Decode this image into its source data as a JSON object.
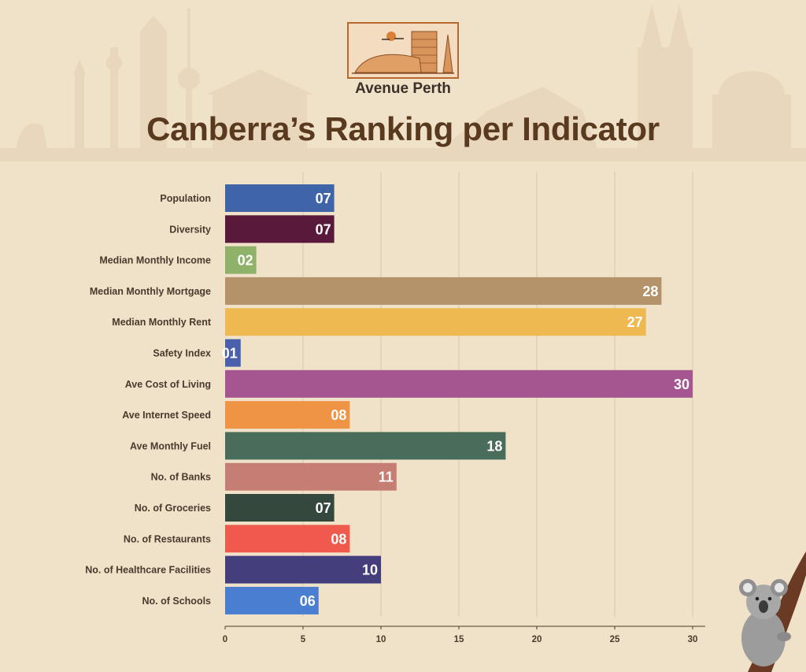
{
  "brand": {
    "name": "Avenue Perth"
  },
  "chart_data": {
    "type": "bar",
    "orientation": "horizontal",
    "title": "Canberra’s Ranking per Indicator",
    "xlabel": "",
    "ylabel": "",
    "xlim": [
      0,
      31
    ],
    "xticks": [
      0,
      5,
      10,
      15,
      20,
      25,
      30
    ],
    "grid": true,
    "categories": [
      "Population",
      "Diversity",
      "Median Monthly Income",
      "Median Monthly Mortgage",
      "Median Monthly Rent",
      "Safety Index",
      "Ave Cost of Living",
      "Ave Internet Speed",
      "Ave Monthly Fuel",
      "No. of Banks",
      "No. of Groceries",
      "No. of Restaurants",
      "No. of Healthcare Facilities",
      "No. of Schools"
    ],
    "values": [
      7,
      7,
      2,
      28,
      27,
      1,
      30,
      8,
      18,
      11,
      7,
      8,
      10,
      6
    ],
    "value_labels": [
      "07",
      "07",
      "02",
      "28",
      "27",
      "01",
      "30",
      "08",
      "18",
      "11",
      "07",
      "08",
      "10",
      "06"
    ],
    "colors": [
      "#3f65a8",
      "#58193b",
      "#8eb26a",
      "#b4936a",
      "#efb951",
      "#4a60ad",
      "#a55590",
      "#ef9444",
      "#496c5b",
      "#c57d74",
      "#34483d",
      "#ef5a4c",
      "#453e7c",
      "#4a7ed0"
    ]
  }
}
